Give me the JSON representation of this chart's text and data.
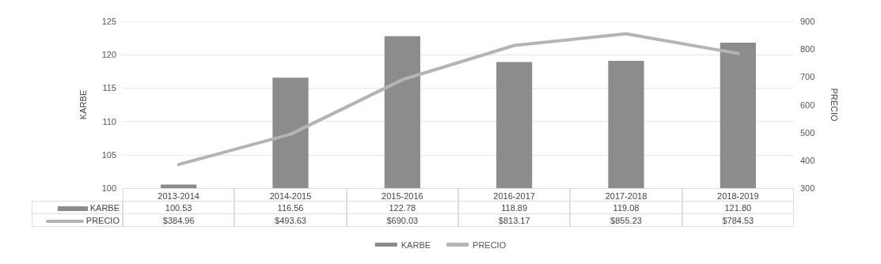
{
  "chart_data": {
    "type": "bar",
    "categories": [
      "2013-2014",
      "2014-2015",
      "2015-2016",
      "2016-2017",
      "2017-2018",
      "2018-2019"
    ],
    "ylabel": "KARBE",
    "y2label": "PRECIO",
    "series": [
      {
        "name": "KARBE",
        "color": "#8c8c8c",
        "values": [
          100.53,
          116.56,
          122.78,
          118.89,
          119.08,
          121.8
        ],
        "value_labels": [
          "100.53",
          "116.56",
          "122.78",
          "118.89",
          "119.08",
          "121.80"
        ]
      },
      {
        "name": "PRECIO",
        "type": "line",
        "axis": "y2",
        "color": "#b4b4b4",
        "values": [
          384.96,
          493.63,
          690.03,
          813.17,
          855.23,
          784.53
        ],
        "value_labels": [
          "$384.96",
          "$493.63",
          "$690.03",
          "$813.17",
          "$855.23",
          "$784.53"
        ]
      }
    ],
    "ylim": [
      100,
      125
    ],
    "yticks": [
      100,
      105,
      110,
      115,
      120,
      125
    ],
    "y2lim": [
      300,
      900
    ],
    "y2ticks": [
      300,
      400,
      500,
      600,
      700,
      800,
      900
    ],
    "grid": "y",
    "legend": "bottom",
    "marker": "none",
    "line_style": "solid"
  }
}
